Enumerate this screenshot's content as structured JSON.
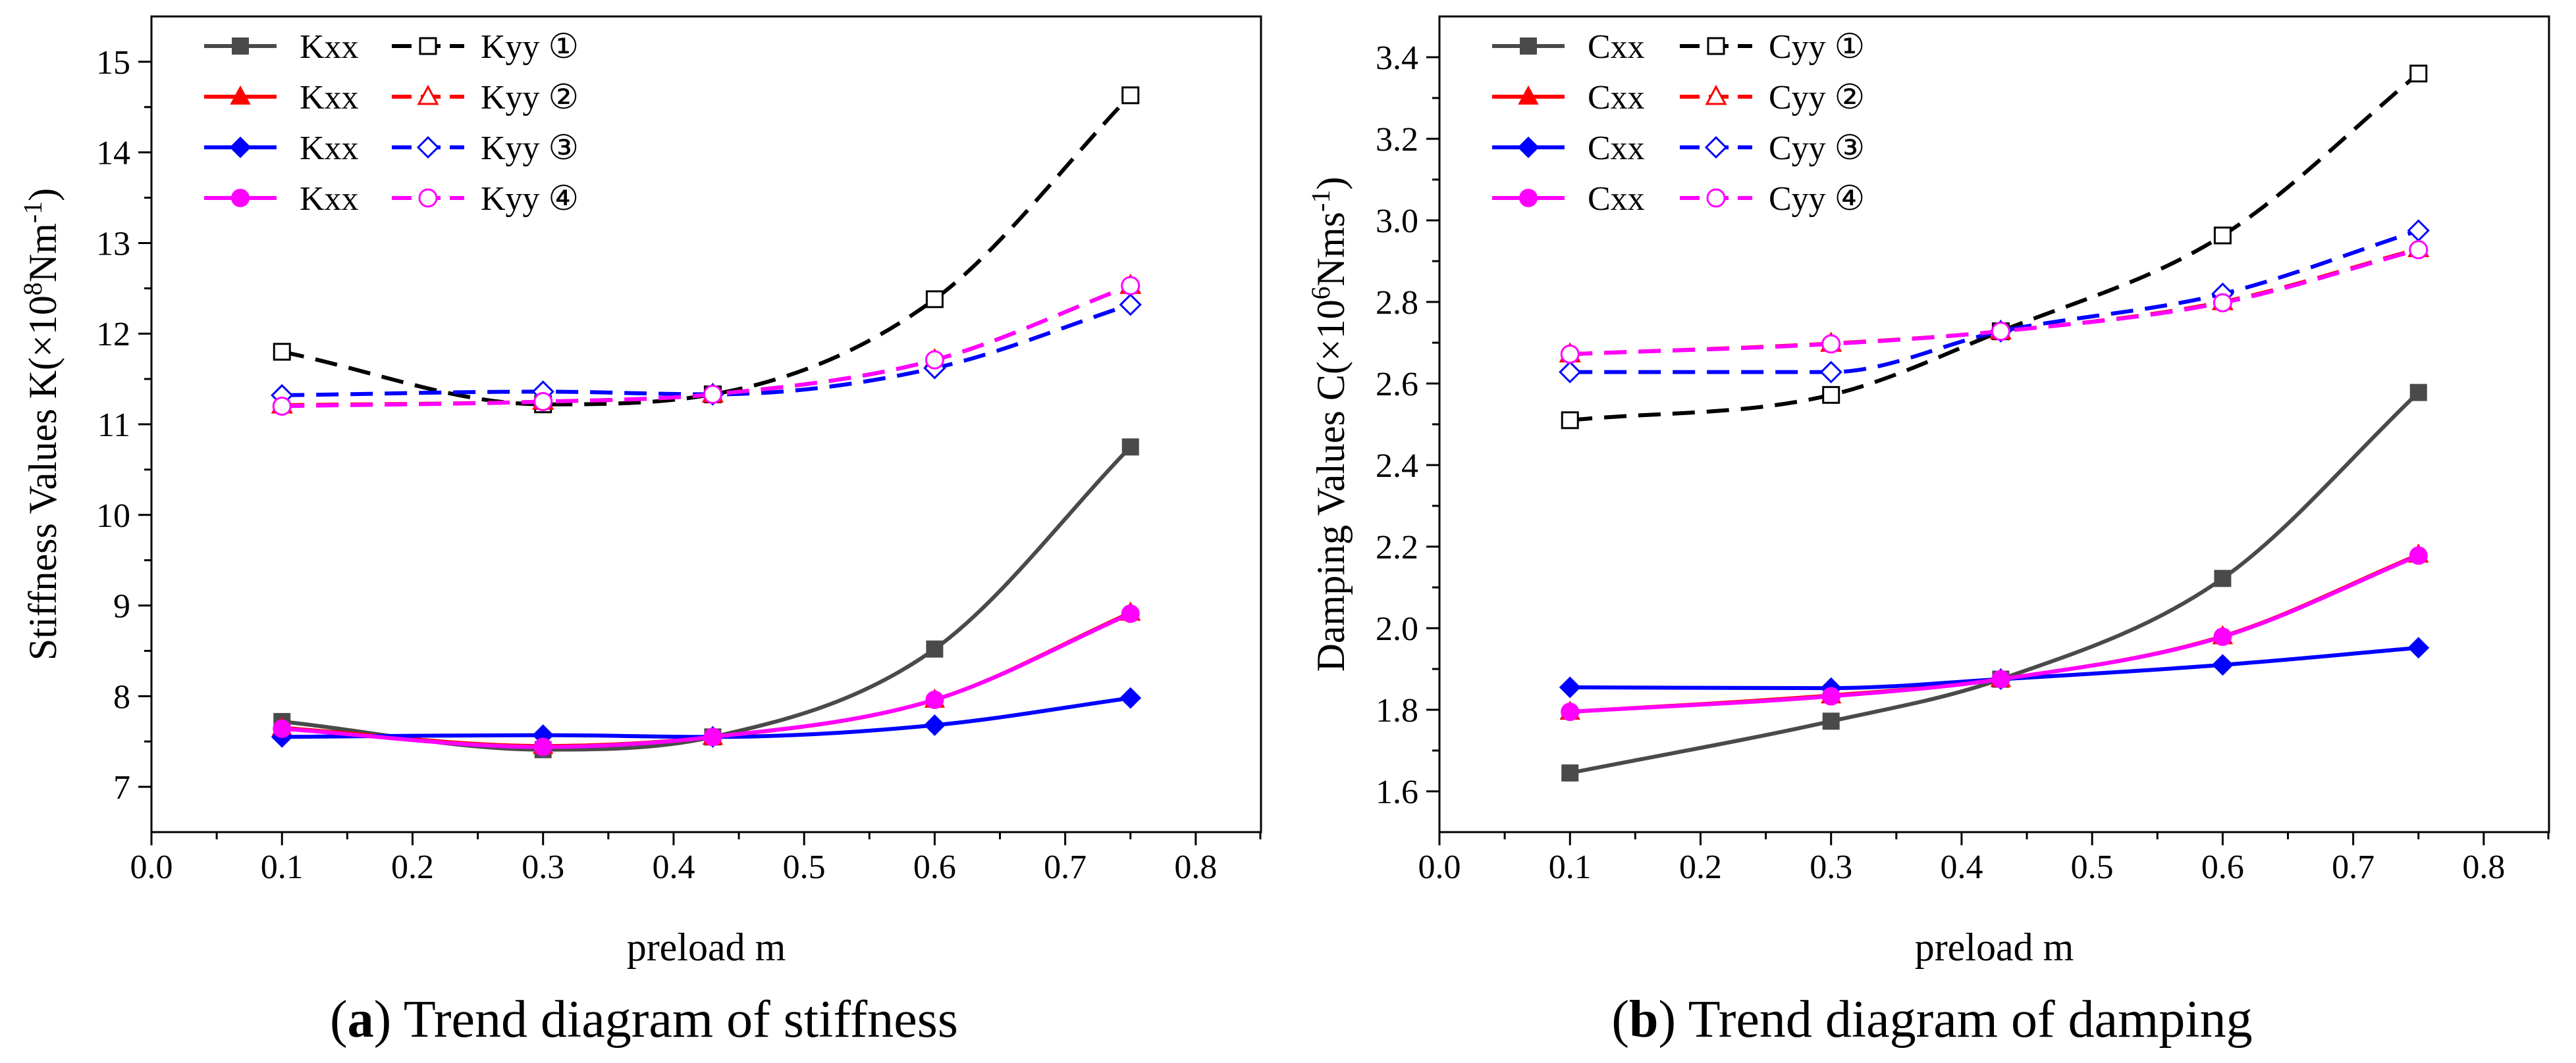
{
  "chart_data": [
    {
      "id": "a",
      "type": "line",
      "caption_letter": "a",
      "caption_text": "Trend diagram of stiffness",
      "xlabel": "preload m",
      "ylabel_prefix": "Stiffness Values K(×10",
      "ylabel_exp1": "8",
      "ylabel_mid": "Nm",
      "ylabel_exp2": "-1",
      "ylabel_suffix": ")",
      "xlim": [
        0.0,
        0.85
      ],
      "ylim": [
        6.5,
        15.5
      ],
      "xticks": [
        "0.0",
        "0.1",
        "0.2",
        "0.3",
        "0.4",
        "0.5",
        "0.6",
        "0.7",
        "0.8"
      ],
      "xtick_values": [
        0.0,
        0.1,
        0.2,
        0.3,
        0.4,
        0.5,
        0.6,
        0.7,
        0.8
      ],
      "yticks": [
        "7",
        "8",
        "9",
        "10",
        "11",
        "12",
        "13",
        "14",
        "15"
      ],
      "ytick_values": [
        7,
        8,
        9,
        10,
        11,
        12,
        13,
        14,
        15
      ],
      "x": [
        0.1,
        0.3,
        0.43,
        0.6,
        0.75
      ],
      "legend_position": "top-left",
      "series": [
        {
          "name": "Kxx",
          "case": "①",
          "color": "#4a4a4a",
          "dash": "solid",
          "marker": "square",
          "filled": true,
          "values": [
            7.72,
            7.41,
            7.55,
            8.52,
            10.75
          ]
        },
        {
          "name": "Kxx",
          "case": "②",
          "color": "#ff0000",
          "dash": "solid",
          "marker": "triangle",
          "filled": true,
          "values": [
            7.65,
            7.45,
            7.55,
            7.96,
            8.92
          ]
        },
        {
          "name": "Kxx",
          "case": "③",
          "color": "#0000ff",
          "dash": "solid",
          "marker": "diamond",
          "filled": true,
          "values": [
            7.55,
            7.57,
            7.55,
            7.68,
            7.98
          ]
        },
        {
          "name": "Kxx",
          "case": "④",
          "color": "#ff00ff",
          "dash": "solid",
          "marker": "circle",
          "filled": true,
          "values": [
            7.64,
            7.44,
            7.55,
            7.96,
            8.91
          ]
        },
        {
          "name": "Kyy",
          "case": "①",
          "color": "#000000",
          "dash": "dashed",
          "marker": "square",
          "filled": false,
          "values": [
            11.8,
            11.22,
            11.33,
            12.38,
            14.63
          ]
        },
        {
          "name": "Kyy",
          "case": "②",
          "color": "#ff0000",
          "dash": "dashed",
          "marker": "triangle",
          "filled": false,
          "values": [
            11.21,
            11.25,
            11.33,
            11.71,
            12.53
          ]
        },
        {
          "name": "Kyy",
          "case": "③",
          "color": "#0000ff",
          "dash": "dashed",
          "marker": "diamond",
          "filled": false,
          "values": [
            11.32,
            11.36,
            11.33,
            11.62,
            12.32
          ]
        },
        {
          "name": "Kyy",
          "case": "④",
          "color": "#ff00ff",
          "dash": "dashed",
          "marker": "circle",
          "filled": false,
          "values": [
            11.2,
            11.25,
            11.33,
            11.71,
            12.53
          ]
        }
      ]
    },
    {
      "id": "b",
      "type": "line",
      "caption_letter": "b",
      "caption_text": "Trend diagram of damping",
      "xlabel": "preload m",
      "ylabel_prefix": "Damping Values C(×10",
      "ylabel_exp1": "6",
      "ylabel_mid": "Nms",
      "ylabel_exp2": "-1",
      "ylabel_suffix": ")",
      "xlim": [
        0.0,
        0.85
      ],
      "ylim": [
        1.5,
        3.5
      ],
      "xticks": [
        "0.0",
        "0.1",
        "0.2",
        "0.3",
        "0.4",
        "0.5",
        "0.6",
        "0.7",
        "0.8"
      ],
      "xtick_values": [
        0.0,
        0.1,
        0.2,
        0.3,
        0.4,
        0.5,
        0.6,
        0.7,
        0.8
      ],
      "yticks": [
        "1.6",
        "1.8",
        "2.0",
        "2.2",
        "2.4",
        "2.6",
        "2.8",
        "3.0",
        "3.2",
        "3.4"
      ],
      "ytick_values": [
        1.6,
        1.8,
        2.0,
        2.2,
        2.4,
        2.6,
        2.8,
        3.0,
        3.2,
        3.4
      ],
      "x": [
        0.1,
        0.3,
        0.43,
        0.6,
        0.75
      ],
      "legend_position": "top-left",
      "series": [
        {
          "name": "Cxx",
          "case": "①",
          "color": "#4a4a4a",
          "dash": "solid",
          "marker": "square",
          "filled": true,
          "values": [
            1.645,
            1.772,
            1.875,
            2.122,
            2.578
          ]
        },
        {
          "name": "Cxx",
          "case": "②",
          "color": "#ff0000",
          "dash": "solid",
          "marker": "triangle",
          "filled": true,
          "values": [
            1.795,
            1.835,
            1.875,
            1.98,
            2.18
          ]
        },
        {
          "name": "Cxx",
          "case": "③",
          "color": "#0000ff",
          "dash": "solid",
          "marker": "diamond",
          "filled": true,
          "values": [
            1.855,
            1.853,
            1.875,
            1.91,
            1.952
          ]
        },
        {
          "name": "Cxx",
          "case": "④",
          "color": "#ff00ff",
          "dash": "solid",
          "marker": "circle",
          "filled": true,
          "values": [
            1.795,
            1.833,
            1.875,
            1.979,
            2.178
          ]
        },
        {
          "name": "Cyy",
          "case": "①",
          "color": "#000000",
          "dash": "dashed",
          "marker": "square",
          "filled": false,
          "values": [
            2.51,
            2.572,
            2.728,
            2.963,
            3.36
          ]
        },
        {
          "name": "Cyy",
          "case": "②",
          "color": "#ff0000",
          "dash": "dashed",
          "marker": "triangle",
          "filled": false,
          "values": [
            2.672,
            2.698,
            2.728,
            2.8,
            2.93
          ]
        },
        {
          "name": "Cyy",
          "case": "③",
          "color": "#0000ff",
          "dash": "dashed",
          "marker": "diamond",
          "filled": false,
          "values": [
            2.628,
            2.628,
            2.728,
            2.82,
            2.975
          ]
        },
        {
          "name": "Cyy",
          "case": "④",
          "color": "#ff00ff",
          "dash": "dashed",
          "marker": "circle",
          "filled": false,
          "values": [
            2.672,
            2.697,
            2.728,
            2.798,
            2.928
          ]
        }
      ]
    }
  ]
}
